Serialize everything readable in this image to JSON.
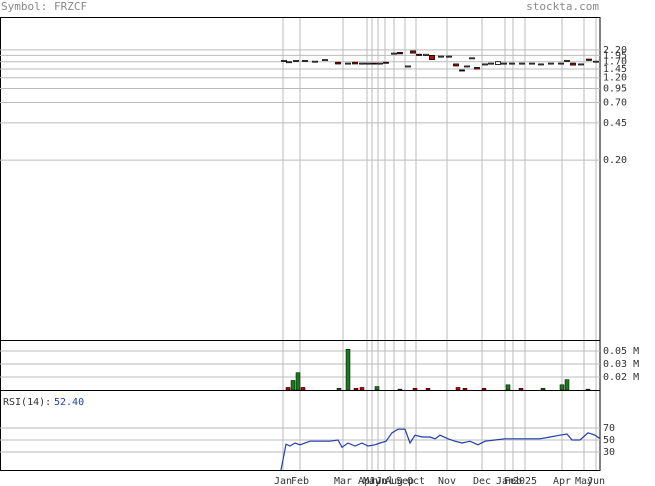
{
  "header": {
    "symbol": "Symbol: FRZCF",
    "site": "stockta.com"
  },
  "chart_data": [
    {
      "type": "candlestick",
      "log_scale": true,
      "grid": true,
      "up_color": "#ffffff",
      "down_color": "#cc0000",
      "xlim": [
        0,
        600
      ],
      "ylim": [
        0.004,
        4.4
      ],
      "yticks": [
        {
          "value": 2.2,
          "label": "2.20"
        },
        1.95,
        {
          "value": 1.7,
          "label": "1.70"
        },
        1.45,
        {
          "value": 1.2,
          "label": "1.20"
        },
        0.95,
        {
          "value": 0.7,
          "label": "0.70"
        },
        0.45,
        {
          "value": 0.2,
          "label": "0.20"
        }
      ],
      "xticks": [
        {
          "value": 283,
          "label": "Jan"
        },
        {
          "value": 300,
          "label": "Feb"
        },
        {
          "value": 343,
          "label": "Mar"
        },
        {
          "value": 367,
          "label": "Apr"
        },
        {
          "value": 372,
          "label": "May"
        },
        {
          "value": 378,
          "label": "Jun"
        },
        {
          "value": 385,
          "label": "Jul"
        },
        {
          "value": 394,
          "label": "Aug"
        },
        {
          "value": 405,
          "label": "Sep"
        },
        {
          "value": 416,
          "label": "Oct"
        },
        {
          "value": 447,
          "label": "Nov"
        },
        {
          "value": 482,
          "label": "Dec"
        },
        {
          "value": 505,
          "label": "Jan"
        },
        {
          "value": 513,
          "label": "Feb"
        },
        {
          "value": 525,
          "label": "2025"
        },
        {
          "value": 562,
          "label": "Apr"
        },
        {
          "value": 584,
          "label": "May"
        },
        {
          "value": 596,
          "label": "Jun"
        }
      ],
      "x": [
        284,
        289,
        296,
        305,
        315,
        325,
        338,
        348,
        355,
        362,
        368,
        374,
        380,
        386,
        394,
        400,
        408,
        413,
        419,
        426,
        432,
        441,
        449,
        456,
        462,
        467,
        472,
        477,
        485,
        491,
        498,
        504,
        512,
        522,
        532,
        541,
        551,
        561,
        567,
        573,
        581,
        589,
        596
      ],
      "open": [
        1.75,
        1.68,
        1.72,
        1.72,
        1.72,
        1.75,
        1.68,
        1.65,
        1.68,
        1.65,
        1.62,
        1.65,
        1.62,
        1.68,
        2.05,
        2.08,
        1.55,
        2.15,
        2.0,
        1.95,
        1.95,
        1.92,
        1.92,
        1.62,
        1.42,
        1.55,
        1.85,
        1.5,
        1.62,
        1.65,
        1.6,
        1.65,
        1.65,
        1.65,
        1.65,
        1.62,
        1.65,
        1.65,
        1.75,
        1.65,
        1.62,
        1.8,
        1.72
      ],
      "close": [
        1.75,
        1.7,
        1.75,
        1.75,
        1.72,
        1.78,
        1.62,
        1.65,
        1.62,
        1.65,
        1.65,
        1.62,
        1.65,
        1.65,
        2.05,
        2.02,
        1.55,
        2.05,
        1.95,
        2.0,
        1.78,
        1.92,
        1.92,
        1.55,
        1.4,
        1.55,
        1.85,
        1.45,
        1.62,
        1.65,
        1.7,
        1.65,
        1.65,
        1.65,
        1.65,
        1.62,
        1.65,
        1.65,
        1.75,
        1.58,
        1.62,
        1.75,
        1.72
      ]
    },
    {
      "type": "bar",
      "grid": true,
      "xlim": [
        0,
        600
      ],
      "ylim": [
        0,
        0.0565
      ],
      "yticks": [
        {
          "value": 0.045,
          "label": "0.05 M"
        },
        {
          "value": 0.03,
          "label": "0.03 M"
        },
        {
          "value": 0.015,
          "label": "0.02 M"
        }
      ],
      "x": [
        288,
        293,
        298,
        303,
        339,
        348,
        356,
        362,
        377,
        400,
        415,
        428,
        458,
        465,
        484,
        508,
        521,
        543,
        562,
        567,
        588
      ],
      "values": [
        0.003,
        0.011,
        0.02,
        0.003,
        0.002,
        0.047,
        0.002,
        0.003,
        0.004,
        0.001,
        0.002,
        0.002,
        0.003,
        0.002,
        0.002,
        0.006,
        0.002,
        0.002,
        0.006,
        0.012,
        0.001
      ],
      "colors": [
        "#cc0000",
        "#1a7a1a",
        "#1a7a1a",
        "#cc0000",
        "#1a7a1a",
        "#1a7a1a",
        "#cc0000",
        "#cc0000",
        "#1a7a1a",
        "#cc0000",
        "#cc0000",
        "#cc0000",
        "#cc0000",
        "#cc0000",
        "#cc0000",
        "#1a7a1a",
        "#cc0000",
        "#1a7a1a",
        "#1a7a1a",
        "#1a7a1a",
        "#cc0000"
      ]
    },
    {
      "type": "line",
      "title": "RSI(14):",
      "last_value": 52.4,
      "last_value_label": "52.40",
      "color": "#1f3fae",
      "grid": true,
      "xlim": [
        0,
        600
      ],
      "ylim": [
        0,
        131.7
      ],
      "yticks": [
        70,
        50,
        30
      ],
      "x": [
        281,
        286,
        290,
        295,
        300,
        310,
        320,
        330,
        338,
        342,
        348,
        355,
        362,
        368,
        375,
        380,
        386,
        392,
        398,
        405,
        410,
        415,
        422,
        430,
        435,
        440,
        448,
        455,
        462,
        470,
        478,
        485,
        495,
        505,
        520,
        540,
        550,
        560,
        567,
        572,
        580,
        588,
        595,
        600
      ],
      "values": [
        0,
        43,
        40,
        45,
        42,
        48,
        48,
        48,
        50,
        38,
        45,
        40,
        45,
        40,
        42,
        45,
        48,
        62,
        68,
        68,
        45,
        58,
        55,
        55,
        52,
        58,
        52,
        48,
        45,
        48,
        42,
        48,
        50,
        52,
        52,
        52,
        55,
        58,
        60,
        50,
        50,
        62,
        58,
        52.4
      ]
    }
  ]
}
